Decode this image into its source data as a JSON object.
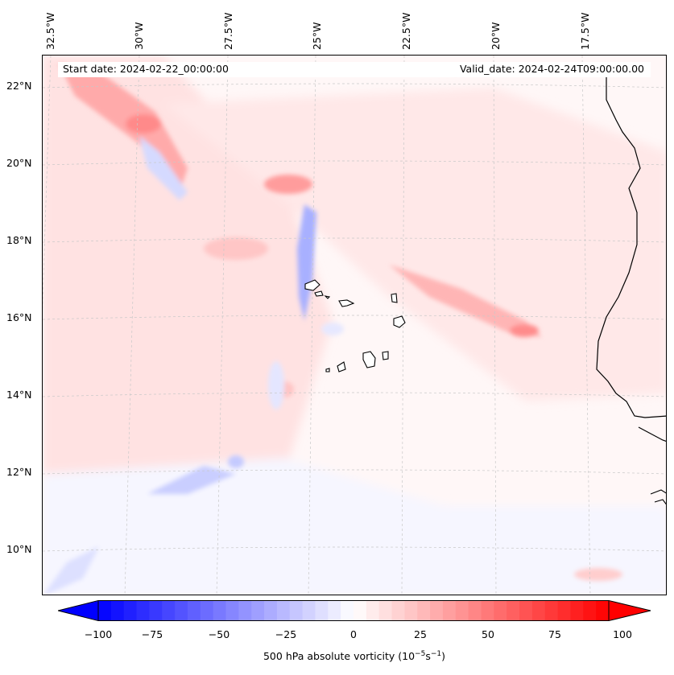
{
  "map": {
    "start_label": "Start date: 2024-02-22_00:00:00",
    "valid_label": "Valid_date: 2024-02-24T09:00:00.00",
    "lon_ticks": [
      "32.5°W",
      "30°W",
      "27.5°W",
      "25°W",
      "22.5°W",
      "20°W",
      "17.5°W"
    ],
    "lat_ticks": [
      "22°N",
      "20°N",
      "18°N",
      "16°N",
      "14°N",
      "12°N",
      "10°N"
    ],
    "colorbar": {
      "ticks": [
        "−100",
        "−75",
        "−50",
        "−25",
        "0",
        "25",
        "50",
        "75",
        "100"
      ],
      "min": -100,
      "max": 100,
      "label": "500 hPa absolute vorticity (10",
      "label_exp1": "−5",
      "label_mid": "s",
      "label_exp2": "−1",
      "label_end": ")"
    },
    "colors": {
      "negative": "#0000ff",
      "zero": "#ffffff",
      "positive": "#ff0000",
      "coast": "#000000",
      "grid": "#c8c8c8"
    }
  }
}
